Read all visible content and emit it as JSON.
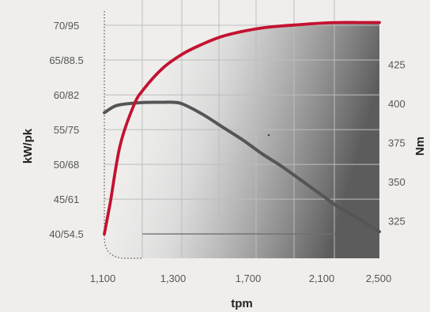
{
  "chart_data": {
    "type": "line",
    "title": "",
    "xlabel": "tpm",
    "ylabel_left": "kW/pk",
    "ylabel_right": "Nm",
    "x_tick_labels": [
      "1,100",
      "1,300",
      "1,700",
      "2,100",
      "2,500"
    ],
    "x_tick_values": [
      1100,
      1300,
      1700,
      2100,
      2500
    ],
    "y_left_tick_labels": [
      "40/54.5",
      "45/61",
      "50/68",
      "55/75",
      "60/82",
      "65/88.5",
      "70/95"
    ],
    "y_left_tick_values": [
      40,
      45,
      50,
      55,
      60,
      65,
      70
    ],
    "y_right_tick_labels": [
      "325",
      "350",
      "375",
      "400",
      "425"
    ],
    "y_right_tick_values": [
      325,
      350,
      375,
      400,
      425
    ],
    "ylim_left": [
      36.5,
      72.5
    ],
    "ylim_right": [
      301,
      461
    ],
    "grid": true,
    "series": [
      {
        "axis": "left",
        "color": "#c41230",
        "x": [
          1100,
          1130,
          1180,
          1250,
          1300,
          1400,
          1500,
          1600,
          1700,
          1800,
          1900,
          2000,
          2100,
          2200,
          2300,
          2400,
          2500
        ],
        "y": [
          40,
          44.5,
          52.7,
          58.5,
          60.8,
          63.9,
          65.9,
          67.3,
          68.4,
          69.1,
          69.6,
          69.9,
          70.1,
          70.3,
          70.4,
          70.4,
          70.4
        ]
      },
      {
        "axis": "right",
        "color": "#555555",
        "x": [
          1100,
          1150,
          1200,
          1300,
          1400,
          1450,
          1500,
          1600,
          1700,
          1800,
          1900,
          2000,
          2100,
          2200,
          2300,
          2400,
          2500
        ],
        "y": [
          394,
          398,
          399.5,
          400.6,
          400.7,
          400.7,
          399.5,
          393,
          385,
          377,
          368,
          360,
          351,
          342,
          333,
          326,
          318
        ]
      }
    ],
    "colors": {
      "background": "#efeeec",
      "grid": "#bdbdbd",
      "baseline": "#707070"
    }
  }
}
